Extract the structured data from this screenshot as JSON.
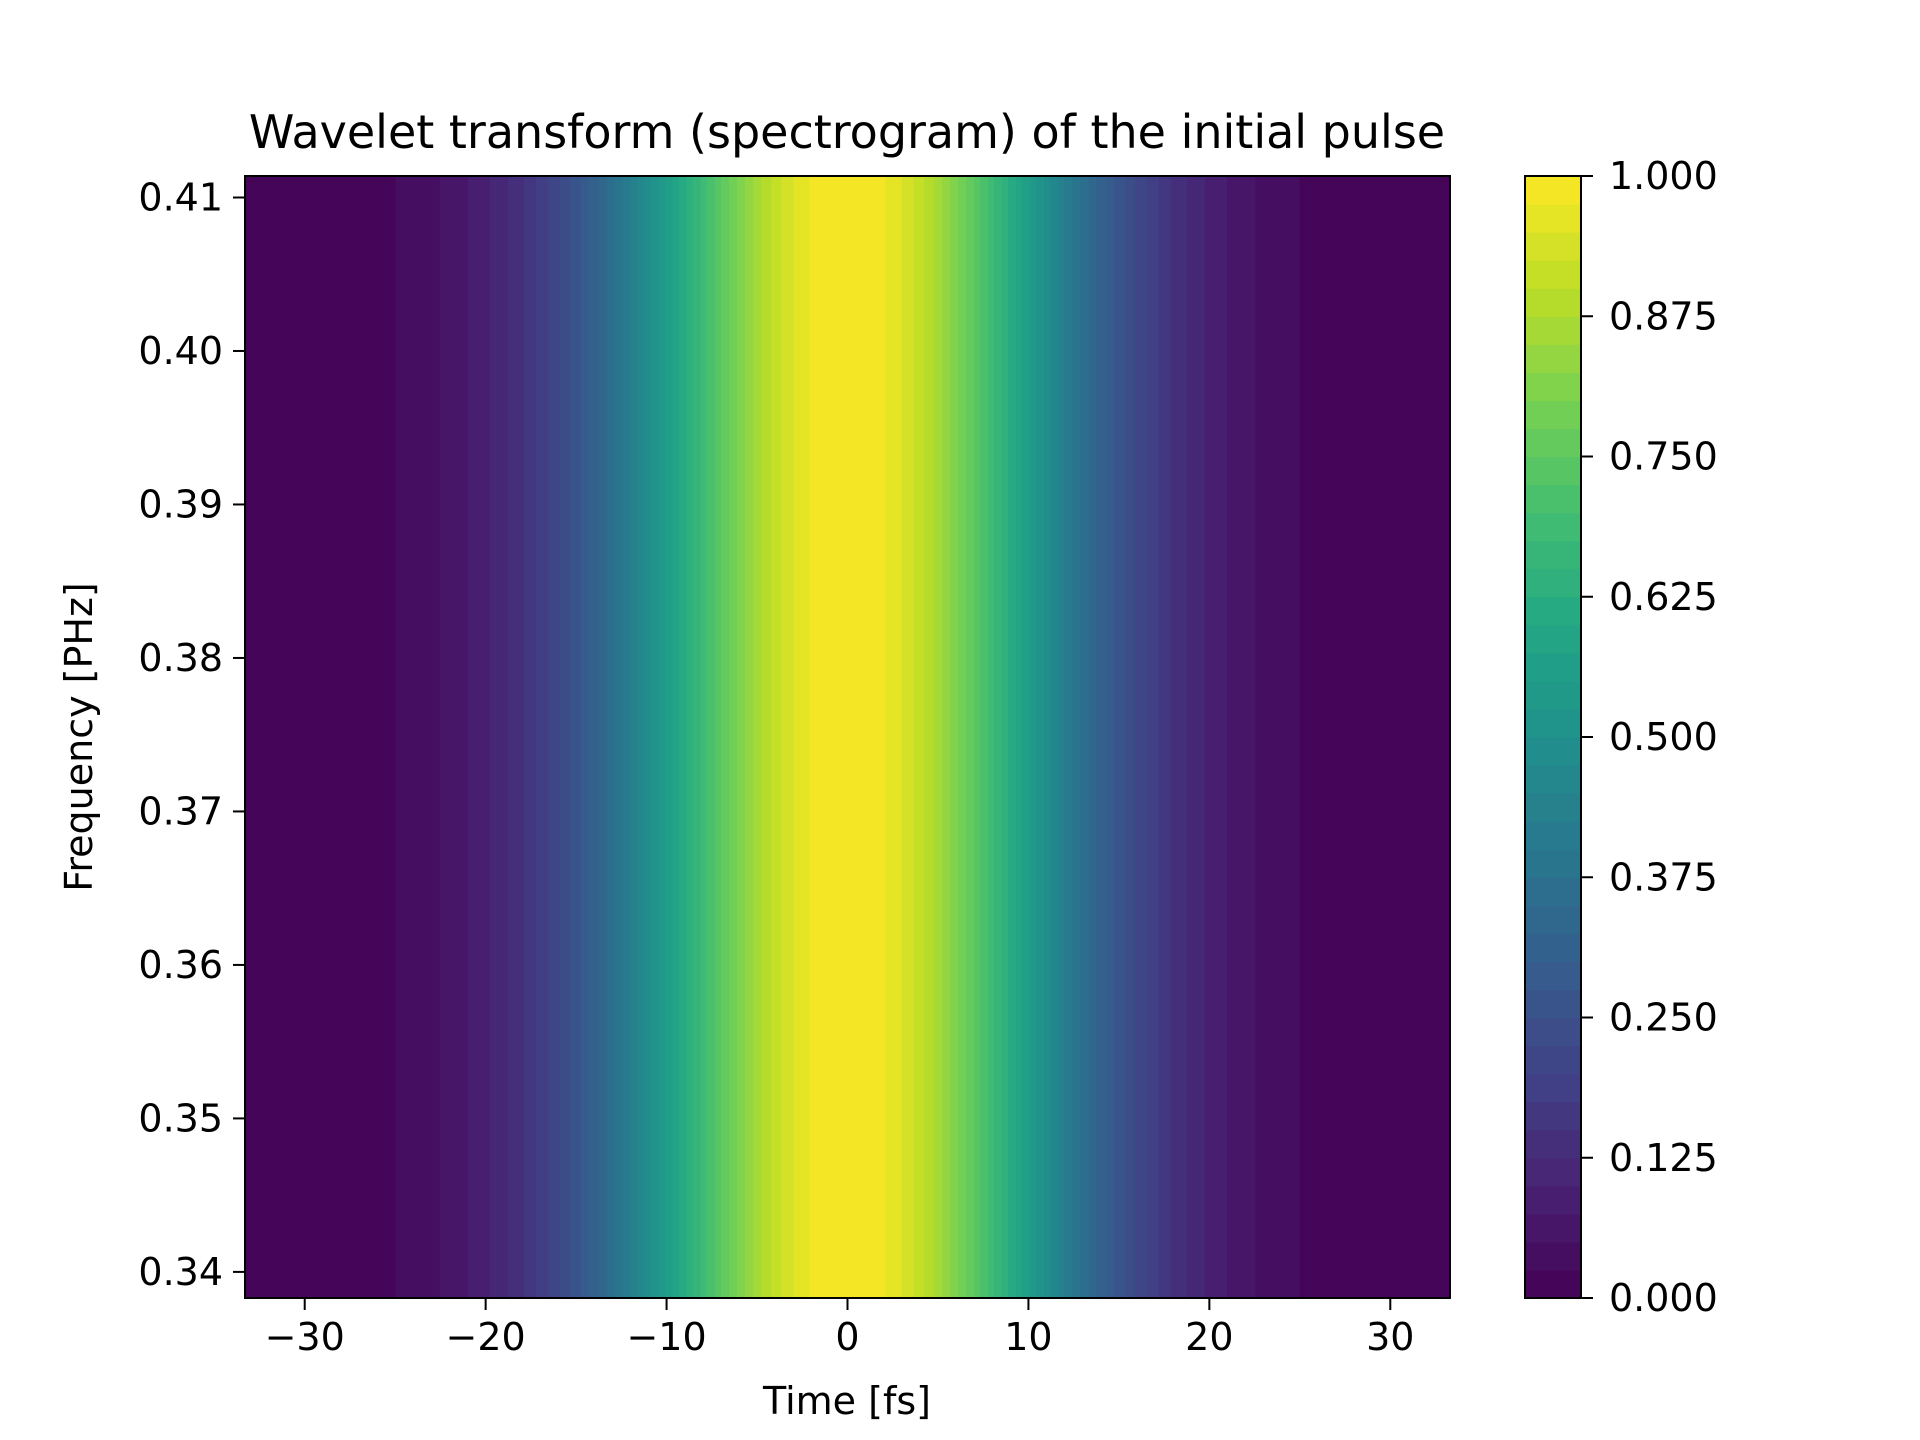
{
  "chart_data": {
    "type": "heatmap",
    "title": "Wavelet transform (spectrogram) of the initial pulse",
    "xlabel": "Time [fs]",
    "ylabel": "Frequency [PHz]",
    "xlim": [
      -33.3,
      33.3
    ],
    "ylim": [
      0.3383,
      0.4114
    ],
    "x_ticks": [
      -30,
      -20,
      -10,
      0,
      10,
      20,
      30
    ],
    "x_tick_labels": [
      "−30",
      "−20",
      "−10",
      "0",
      "10",
      "20",
      "30"
    ],
    "y_ticks": [
      0.34,
      0.35,
      0.36,
      0.37,
      0.38,
      0.39,
      0.4,
      0.41
    ],
    "y_tick_labels": [
      "0.34",
      "0.35",
      "0.36",
      "0.37",
      "0.38",
      "0.39",
      "0.40",
      "0.41"
    ],
    "colorbar": {
      "min": 0.0,
      "max": 1.0,
      "levels": 40,
      "ticks": [
        0.0,
        0.125,
        0.25,
        0.375,
        0.5,
        0.625,
        0.75,
        0.875,
        1.0
      ],
      "tick_labels": [
        "0.000",
        "0.125",
        "0.250",
        "0.375",
        "0.500",
        "0.625",
        "0.750",
        "0.875",
        "1.000"
      ],
      "colormap": "viridis"
    },
    "intensity_profile": {
      "form": "gaussian in time, constant across frequency",
      "center_time": 0,
      "sigma_time": 9.2,
      "peak": 1.0
    },
    "grid": false
  }
}
